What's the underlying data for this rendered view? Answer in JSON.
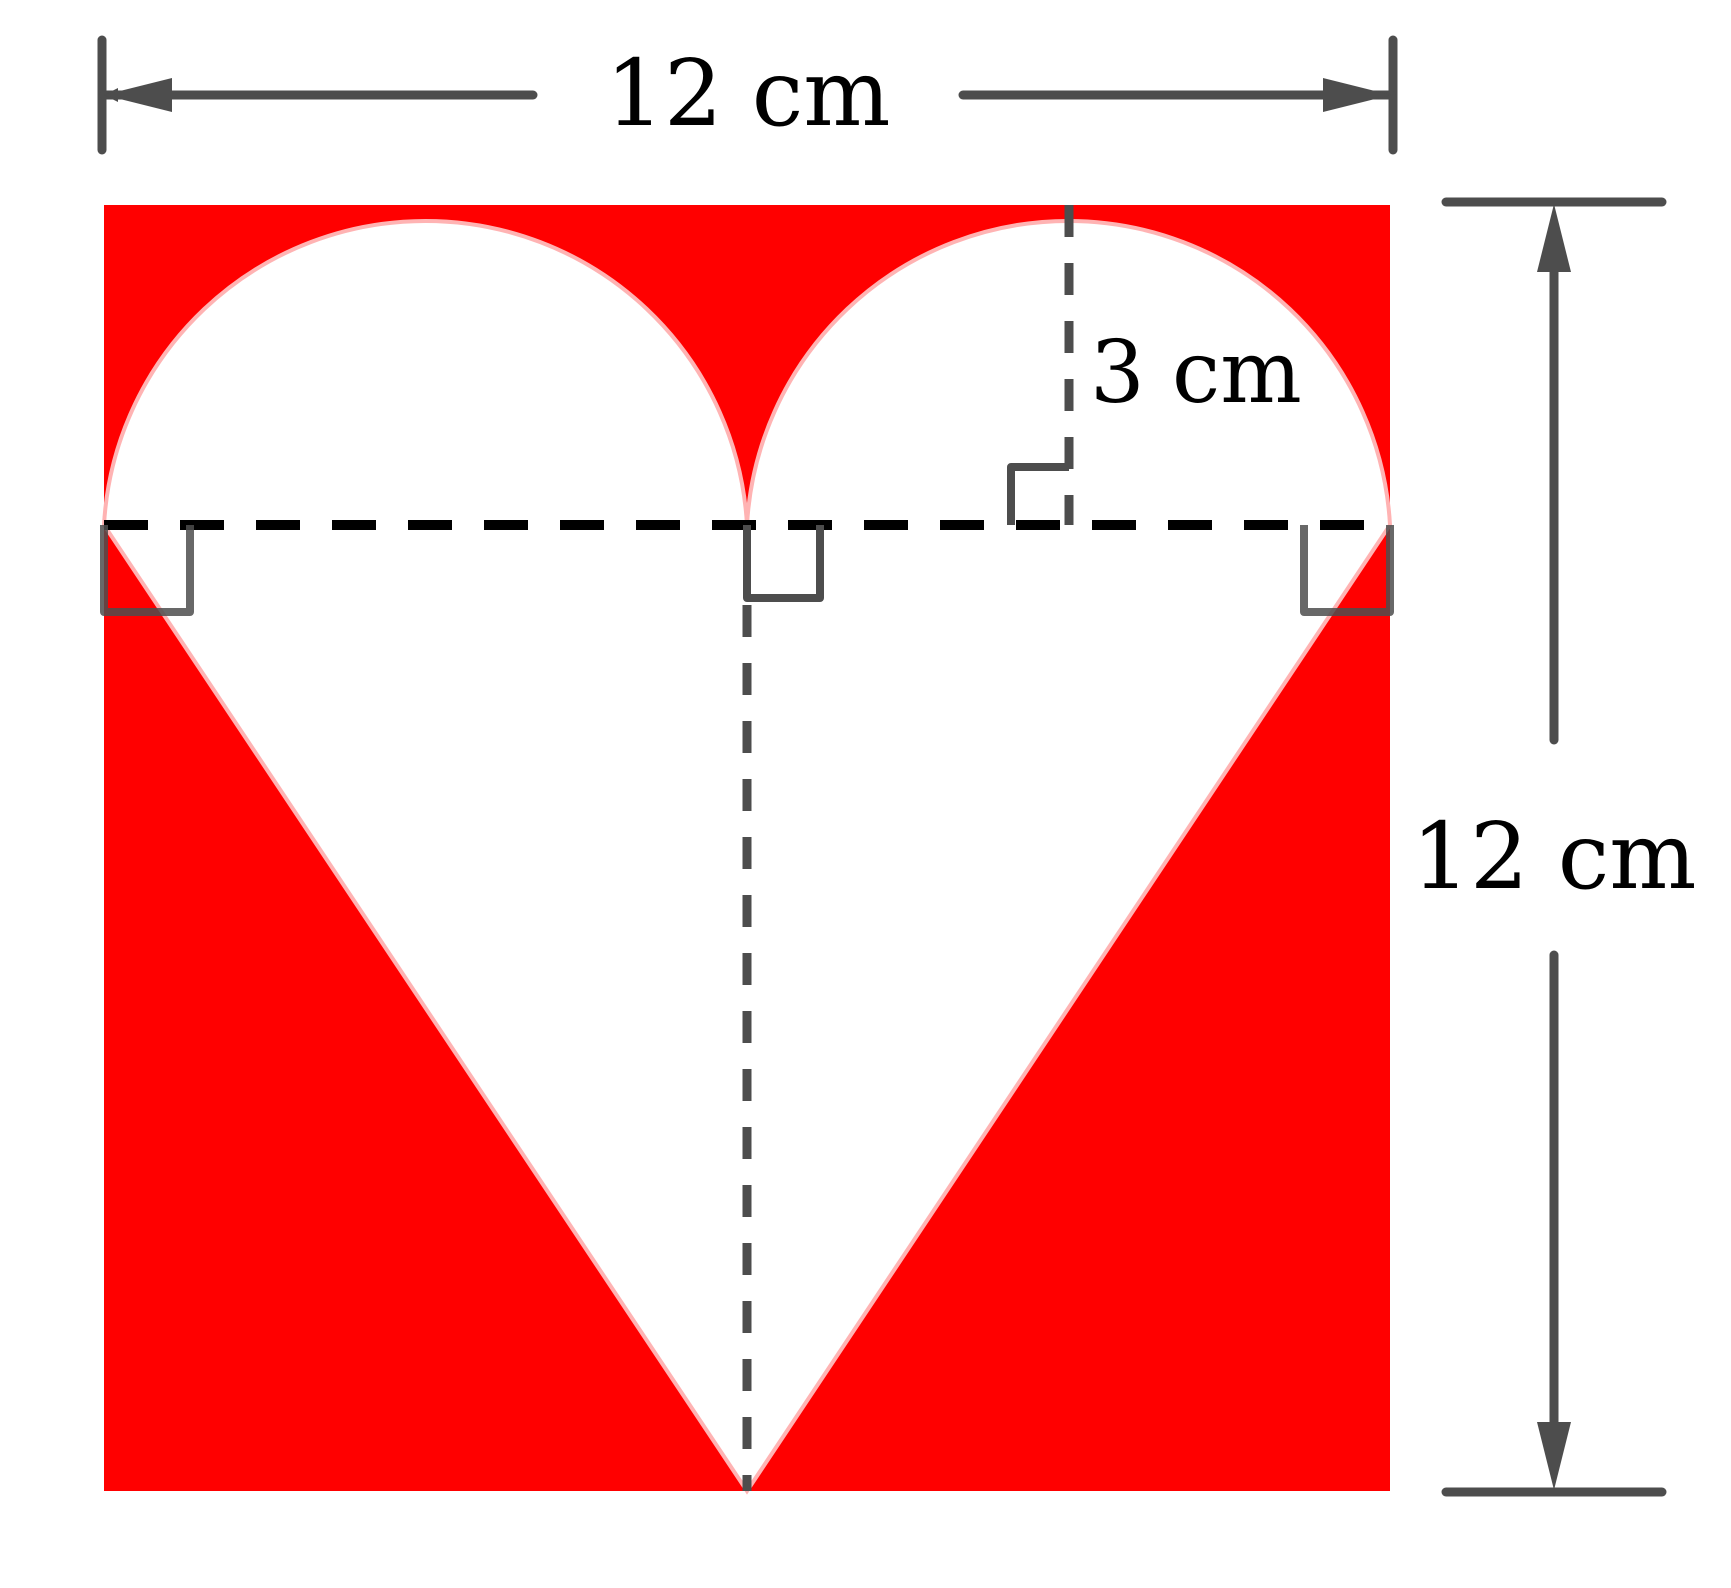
{
  "labels": {
    "top_width": "12 cm",
    "right_height": "12 cm",
    "radius": "3 cm"
  },
  "colors": {
    "fill": "#ff0000",
    "heart": "#ffffff",
    "line": "#4d4d4d",
    "dash_midline": "#000000"
  },
  "shape": {
    "square_side_cm": 12,
    "semicircle_radius_cm": 3,
    "description_free": true
  }
}
